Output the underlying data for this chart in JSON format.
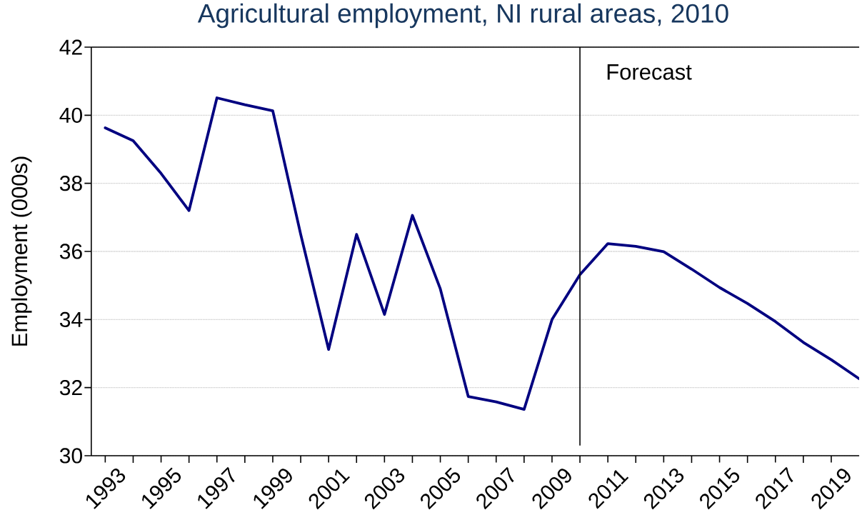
{
  "chart_data": {
    "type": "line",
    "title": "Agricultural employment, NI rural areas, 2010",
    "ylabel": "Employment (000s)",
    "x": [
      1993,
      1994,
      1995,
      1996,
      1997,
      1998,
      1999,
      2000,
      2001,
      2002,
      2003,
      2004,
      2005,
      2006,
      2007,
      2008,
      2009,
      2010,
      2011,
      2012,
      2013,
      2014,
      2015,
      2016,
      2017,
      2018,
      2019,
      2020
    ],
    "values": [
      39.63,
      39.25,
      38.29,
      37.2,
      40.51,
      40.31,
      40.13,
      36.5,
      33.12,
      36.5,
      34.15,
      37.06,
      34.9,
      31.74,
      31.58,
      31.36,
      34.0,
      35.32,
      36.23,
      36.15,
      35.99,
      35.48,
      34.94,
      34.47,
      33.94,
      33.33,
      32.82,
      32.26
    ],
    "color": "#000080",
    "xlim": [
      1992.5,
      2020
    ],
    "xticks": [
      1993,
      {
        "value": 1994,
        "label": null
      },
      1995,
      {
        "value": 1996,
        "label": null
      },
      1997,
      {
        "value": 1998,
        "label": null
      },
      1999,
      {
        "value": 2000,
        "label": null
      },
      2001,
      {
        "value": 2002,
        "label": null
      },
      2003,
      {
        "value": 2004,
        "label": null
      },
      2005,
      {
        "value": 2006,
        "label": null
      },
      2007,
      {
        "value": 2008,
        "label": null
      },
      2009,
      {
        "value": 2010,
        "label": null
      },
      2011,
      {
        "value": 2012,
        "label": null
      },
      2013,
      {
        "value": 2014,
        "label": null
      },
      2015,
      {
        "value": 2016,
        "label": null
      },
      2017,
      {
        "value": 2018,
        "label": null
      },
      2019
    ],
    "ylim": [
      30,
      42
    ],
    "yticks": [
      30,
      32,
      34,
      36,
      38,
      40,
      42
    ],
    "grid": "y",
    "ref_lines": [
      {
        "axis": "x",
        "value": 2010,
        "label": "Forecast",
        "color": "#000000"
      }
    ]
  }
}
